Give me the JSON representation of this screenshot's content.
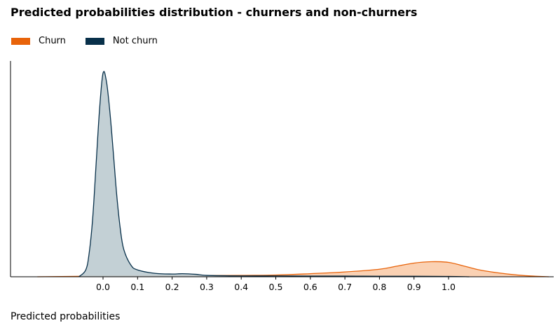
{
  "chart_data": {
    "type": "area",
    "title": "Predicted probabilities distribution - churners and non-churners",
    "xlabel": "Predicted probabilities",
    "ylabel": "",
    "xlim": [
      -0.21,
      1.31
    ],
    "x_ticks": [
      "0.0",
      "0.1",
      "0.2",
      "0.3",
      "0.4",
      "0.5",
      "0.6",
      "0.7",
      "0.8",
      "0.9",
      "1.0"
    ],
    "legend_position": "top-left",
    "grid": false,
    "series": [
      {
        "name": "Churn",
        "color": "#e8630a",
        "fill": "#f9c9a6",
        "x": [
          -0.19,
          0.0,
          0.2,
          0.4,
          0.5,
          0.6,
          0.7,
          0.8,
          0.85,
          0.9,
          0.95,
          1.0,
          1.05,
          1.1,
          1.2,
          1.29
        ],
        "density": [
          0.0,
          0.02,
          0.03,
          0.04,
          0.05,
          0.09,
          0.14,
          0.22,
          0.31,
          0.4,
          0.44,
          0.42,
          0.3,
          0.18,
          0.05,
          0.0
        ]
      },
      {
        "name": "Not churn",
        "color": "#08304a",
        "fill": "#c0cdd3",
        "x": [
          -0.07,
          -0.05,
          -0.04,
          -0.03,
          -0.02,
          -0.01,
          0.0,
          0.01,
          0.02,
          0.03,
          0.04,
          0.05,
          0.06,
          0.08,
          0.1,
          0.15,
          0.2,
          0.23,
          0.27,
          0.3,
          0.4,
          0.5,
          0.6,
          0.7,
          0.8,
          0.9,
          1.0,
          1.06
        ],
        "density": [
          0.0,
          0.2,
          0.7,
          1.7,
          3.3,
          4.9,
          5.95,
          5.7,
          4.8,
          3.6,
          2.35,
          1.4,
          0.8,
          0.35,
          0.2,
          0.1,
          0.08,
          0.09,
          0.07,
          0.04,
          0.025,
          0.025,
          0.02,
          0.02,
          0.015,
          0.015,
          0.01,
          0.0
        ]
      }
    ]
  }
}
